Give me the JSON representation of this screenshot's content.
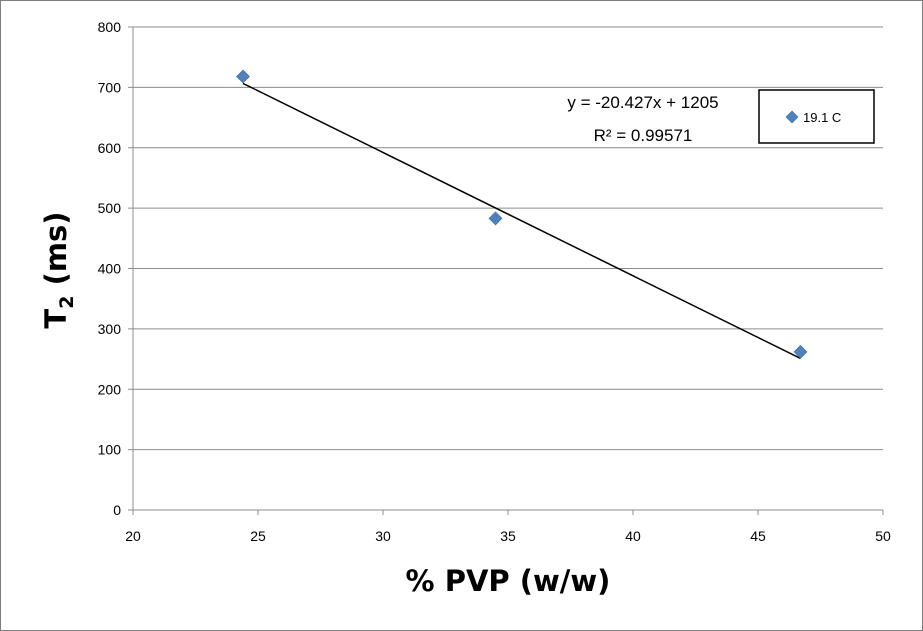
{
  "chart_data": {
    "type": "scatter",
    "title": "",
    "xlabel": "% PVP (w/w)",
    "ylabel_main": "T",
    "ylabel_sub": "2",
    "ylabel_tail": " (ms)",
    "xlim": [
      20,
      50
    ],
    "ylim": [
      0,
      800
    ],
    "x_ticks": [
      20,
      25,
      30,
      35,
      40,
      45,
      50
    ],
    "y_ticks": [
      0,
      100,
      200,
      300,
      400,
      500,
      600,
      700,
      800
    ],
    "grid": "horizontal major",
    "legend_position": "right",
    "series": [
      {
        "name": "19.1 C",
        "color": "#4f81bd",
        "marker": "diamond",
        "x": [
          24.4,
          34.5,
          46.7
        ],
        "y": [
          718,
          483,
          262
        ]
      }
    ],
    "trendline": {
      "type": "linear",
      "slope": -20.427,
      "intercept": 1205,
      "x_range": [
        24.4,
        46.7
      ],
      "color": "#000000",
      "equation_label": "y = -20.427x + 1205",
      "r2_label": "R² = 0.99571"
    }
  }
}
